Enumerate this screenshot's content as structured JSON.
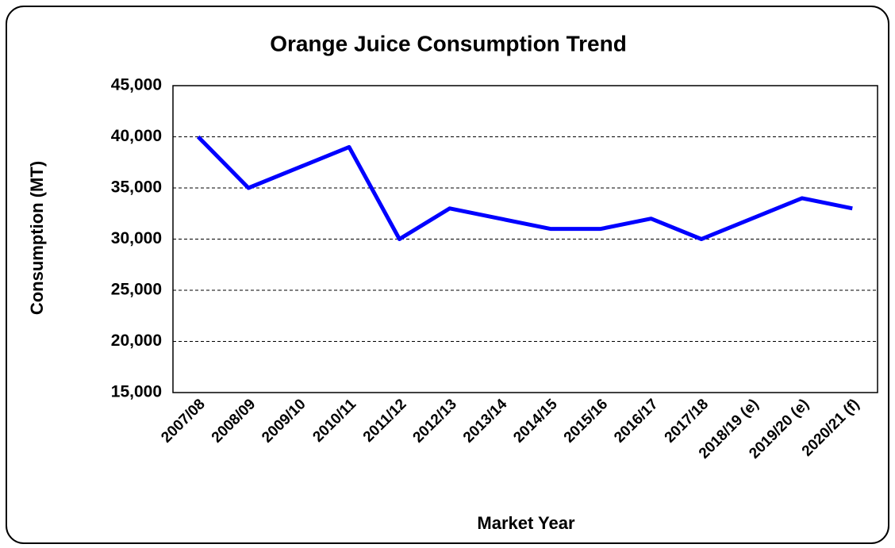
{
  "chart_data": {
    "type": "line",
    "title": "Orange Juice Consumption Trend",
    "x_label": "Market Year",
    "y_label": "Consumption (MT)",
    "categories": [
      "2007/08",
      "2008/09",
      "2009/10",
      "2010/11",
      "2011/12",
      "2012/13",
      "2013/14",
      "2014/15",
      "2015/16",
      "2016/17",
      "2017/18",
      "2018/19 (e)",
      "2019/20 (e)",
      "2020/21 (f)"
    ],
    "series": [
      {
        "name": "Consumption",
        "color": "#0000ff",
        "values": [
          40000,
          35000,
          37000,
          39000,
          30000,
          33000,
          32000,
          31000,
          31000,
          32000,
          30000,
          32000,
          34000,
          33000
        ]
      }
    ],
    "ylim": [
      15000,
      45000
    ],
    "yticks": [
      {
        "value": 15000,
        "label": "15,000"
      },
      {
        "value": 20000,
        "label": "20,000"
      },
      {
        "value": 25000,
        "label": "25,000"
      },
      {
        "value": 30000,
        "label": "30,000"
      },
      {
        "value": 35000,
        "label": "35,000"
      },
      {
        "value": 40000,
        "label": "40,000"
      },
      {
        "value": 45000,
        "label": "45,000"
      }
    ],
    "grid": true
  }
}
